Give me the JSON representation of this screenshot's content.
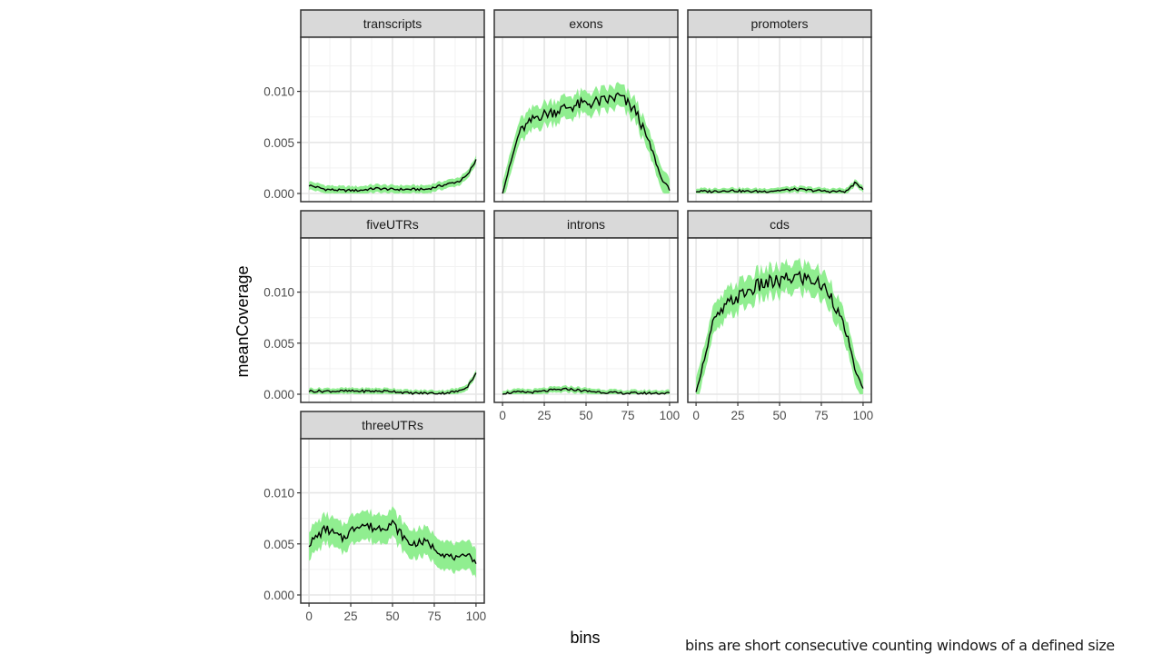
{
  "chart_data": {
    "type": "area",
    "xlabel": "bins",
    "ylabel": "meanCoverage",
    "xlim": [
      0,
      100
    ],
    "ylim": [
      0,
      0.0145
    ],
    "x_ticks": [
      0,
      25,
      50,
      75,
      100
    ],
    "x_tick_labels": [
      "0",
      "25",
      "50",
      "75",
      "100"
    ],
    "y_ticks": [
      0,
      0.005,
      0.01
    ],
    "y_tick_labels": [
      "0.000",
      "0.005",
      "0.010"
    ],
    "x_knots": [
      0,
      10,
      20,
      30,
      40,
      50,
      60,
      70,
      80,
      90,
      95,
      100
    ],
    "band_color": "#90EE90",
    "line_color": "#000000",
    "panels": [
      {
        "name": "transcripts",
        "knots": [
          0.0008,
          0.0004,
          0.0003,
          0.0003,
          0.0005,
          0.0004,
          0.0004,
          0.0004,
          0.0008,
          0.0012,
          0.0018,
          0.0033
        ],
        "band": 0.0004
      },
      {
        "name": "exons",
        "knots": [
          0.0001,
          0.006,
          0.0075,
          0.008,
          0.0085,
          0.0088,
          0.009,
          0.0095,
          0.008,
          0.004,
          0.0015,
          0.0004
        ],
        "band": 0.0011
      },
      {
        "name": "promoters",
        "knots": [
          0.0002,
          0.0002,
          0.0003,
          0.0002,
          0.0002,
          0.0003,
          0.0004,
          0.0003,
          0.0002,
          0.0002,
          0.001,
          0.0005
        ],
        "band": 0.0003
      },
      {
        "name": "fiveUTRs",
        "knots": [
          0.0003,
          0.0003,
          0.0003,
          0.0003,
          0.0003,
          0.0003,
          0.0001,
          0.0001,
          0.0001,
          0.0003,
          0.0008,
          0.002
        ],
        "band": 0.0003
      },
      {
        "name": "introns",
        "knots": [
          0.0001,
          0.0002,
          0.0002,
          0.0004,
          0.0005,
          0.0003,
          0.0002,
          0.0001,
          0.0001,
          0.0001,
          0.0001,
          0.0001
        ],
        "band": 0.0003
      },
      {
        "name": "cds",
        "knots": [
          0.0001,
          0.007,
          0.009,
          0.01,
          0.0108,
          0.011,
          0.0115,
          0.0112,
          0.01,
          0.006,
          0.0025,
          0.0005
        ],
        "band": 0.0014
      },
      {
        "name": "threeUTRs",
        "knots": [
          0.005,
          0.0065,
          0.0055,
          0.007,
          0.0065,
          0.007,
          0.005,
          0.0052,
          0.004,
          0.0035,
          0.0042,
          0.003
        ],
        "band": 0.0014
      }
    ],
    "annotation": "bins are short consecutive counting windows of a defined size"
  }
}
